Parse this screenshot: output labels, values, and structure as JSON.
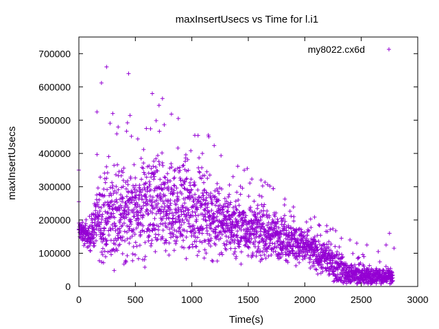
{
  "chart_data": {
    "type": "scatter",
    "title": "maxInsertUsecs vs Time for l.i1",
    "xlabel": "Time(s)",
    "ylabel": "maxInsertUsecs",
    "xlim": [
      0,
      3000
    ],
    "ylim": [
      0,
      750000
    ],
    "x_ticks": [
      "0",
      "500",
      "1000",
      "1500",
      "2000",
      "2500",
      "3000"
    ],
    "y_ticks": [
      "0",
      "100000",
      "200000",
      "300000",
      "400000",
      "500000",
      "600000",
      "700000"
    ],
    "x_tick_values": [
      0,
      500,
      1000,
      1500,
      2000,
      2500,
      3000
    ],
    "y_tick_values": [
      0,
      100000,
      200000,
      300000,
      400000,
      500000,
      600000,
      700000
    ],
    "grid": false,
    "legend_position": "top-right",
    "marker": "+",
    "color": "#9400d3",
    "series": [
      {
        "name": "my8022.cx6d",
        "trend": [
          [
            0,
            170000
          ],
          [
            50,
            155000
          ],
          [
            100,
            145000
          ],
          [
            150,
            200000
          ],
          [
            250,
            210000
          ],
          [
            500,
            230000
          ],
          [
            750,
            240000
          ],
          [
            1000,
            225000
          ],
          [
            1250,
            200000
          ],
          [
            1500,
            170000
          ],
          [
            1750,
            150000
          ],
          [
            2000,
            120000
          ],
          [
            2200,
            80000
          ],
          [
            2400,
            35000
          ],
          [
            2600,
            30000
          ],
          [
            2780,
            30000
          ]
        ],
        "spread": [
          [
            0,
            25000
          ],
          [
            100,
            30000
          ],
          [
            200,
            110000
          ],
          [
            500,
            130000
          ],
          [
            800,
            120000
          ],
          [
            1100,
            100000
          ],
          [
            1500,
            70000
          ],
          [
            2000,
            50000
          ],
          [
            2300,
            40000
          ],
          [
            2500,
            25000
          ],
          [
            2780,
            20000
          ]
        ],
        "notable_points": [
          [
            0,
            350000
          ],
          [
            0,
            255000
          ],
          [
            245,
            660000
          ],
          [
            440,
            640000
          ],
          [
            200,
            612000
          ],
          [
            650,
            580000
          ],
          [
            160,
            525000
          ],
          [
            300,
            520000
          ],
          [
            740,
            565000
          ],
          [
            880,
            505000
          ],
          [
            1150,
            450000
          ],
          [
            1620,
            270000
          ],
          [
            2200,
            165000
          ],
          [
            2400,
            140000
          ],
          [
            2460,
            130000
          ],
          [
            2550,
            125000
          ],
          [
            2750,
            160000
          ],
          [
            2720,
            125000
          ],
          [
            2790,
            115000
          ],
          [
            2650,
            105000
          ]
        ]
      }
    ]
  }
}
